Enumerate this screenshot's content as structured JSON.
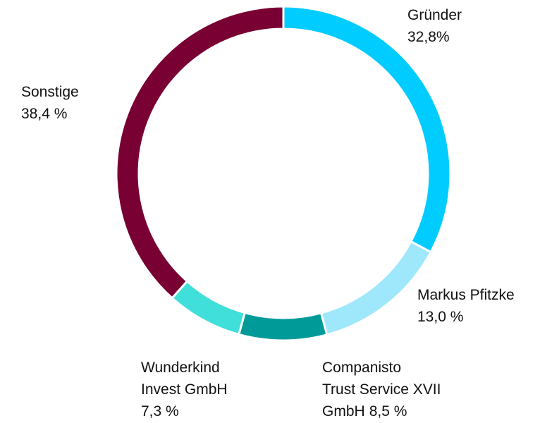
{
  "chart_data": {
    "type": "donut",
    "categories": [
      "Gründer",
      "Markus Pfitzke",
      "Companisto Trust Service XVII GmbH",
      "Wunderkind Invest GmbH",
      "Sonstige"
    ],
    "values": [
      32.8,
      13.0,
      8.5,
      7.3,
      38.4
    ],
    "value_labels": [
      "32,8%",
      "13,0 %",
      "8,5 %",
      "7,3 %",
      "38,4 %"
    ],
    "colors": [
      "#00ccff",
      "#9fe8fb",
      "#009b98",
      "#40dfd9",
      "#790033"
    ]
  }
}
